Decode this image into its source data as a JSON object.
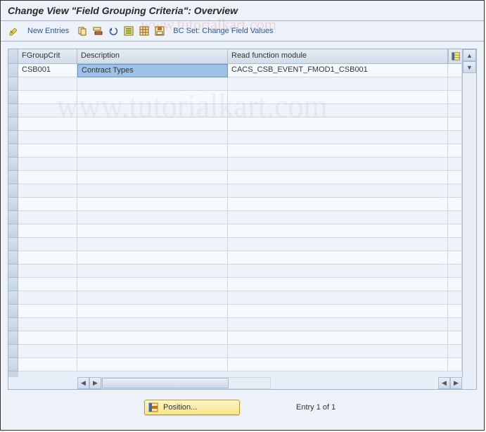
{
  "title": "Change View \"Field Grouping Criteria\": Overview",
  "toolbar": {
    "new_entries_label": "New Entries",
    "bc_set_label": "BC Set: Change Field Values"
  },
  "table": {
    "columns": {
      "fgc": "FGroupCrit",
      "desc": "Description",
      "rfm": "Read function module"
    },
    "rows": [
      {
        "fgc": "CSB001",
        "desc": "Contract Types",
        "rfm": "CACS_CSB_EVENT_FMOD1_CSB001"
      }
    ],
    "empty_row_count": 22,
    "selected_cell": "desc"
  },
  "footer": {
    "position_label": "Position...",
    "entry_text": "Entry 1 of 1"
  },
  "colors": {
    "window_bg": "#edf2f8",
    "header_grad_top": "#e5ecf5",
    "header_grad_bot": "#d2ddea",
    "cell_bg": "#f7fafd",
    "cell_alt_bg": "#eef3fa",
    "border": "#a8bed5",
    "selected_bg": "#9ec1e8",
    "title_color": "#2a2a2a",
    "link_color": "#2a5a9e"
  },
  "icons": {
    "edit": "pencil-check",
    "copy": "copy",
    "row_copy": "row-copy",
    "undo": "undo",
    "select_all": "select-all",
    "grid": "grid",
    "save": "save",
    "config": "table-config",
    "position": "position-locate",
    "scroll_up": "▲",
    "scroll_down": "▼",
    "scroll_left": "◀",
    "scroll_right": "▶"
  }
}
